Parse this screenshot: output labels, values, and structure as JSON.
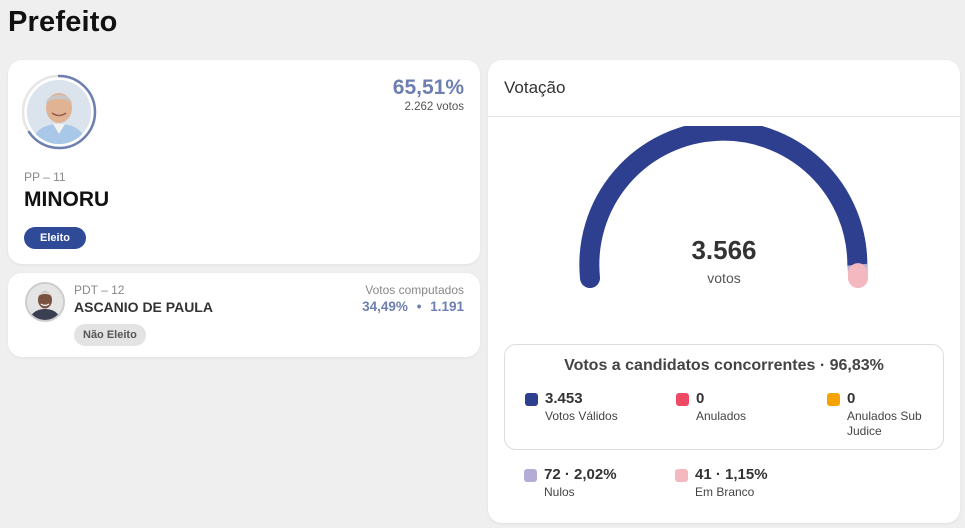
{
  "page": {
    "title": "Prefeito"
  },
  "winner": {
    "party": "PP – 11",
    "name": "MINORU",
    "percent": "65,51%",
    "votes": "2.262 votos",
    "status": "Eleito",
    "ring_fraction": 0.6551
  },
  "second": {
    "party": "PDT – 12",
    "name": "ASCANIO DE PAULA",
    "status": "Não Eleito",
    "computed_label": "Votos computados",
    "percent": "34,49%",
    "separator": "•",
    "votes": "1.191"
  },
  "votacao": {
    "header": "Votação",
    "total": "3.566",
    "total_unit": "votos",
    "gauge_segments": [
      {
        "name": "Votos Válidos",
        "value": 3453,
        "color": "#2e3f8f"
      },
      {
        "name": "Anulados",
        "value": 0,
        "color": "#ef4a63"
      },
      {
        "name": "Anulados Sub Judice",
        "value": 0,
        "color": "#f5a300"
      },
      {
        "name": "Nulos",
        "value": 72,
        "color": "#b4acd6"
      },
      {
        "name": "Em Branco",
        "value": 41,
        "color": "#f4b8c0"
      }
    ],
    "concorrentes_title": "Votos a candidatos concorrentes · 96,83%",
    "legend": [
      {
        "value": "3.453",
        "label": "Votos Válidos",
        "color": "#2e3f8f"
      },
      {
        "value": "0",
        "label": "Anulados",
        "color": "#ef4a63"
      },
      {
        "value": "0",
        "label": "Anulados Sub Judice",
        "color": "#f5a300"
      },
      {
        "value": "72 · 2,02%",
        "label": "Nulos",
        "color": "#b4acd6"
      },
      {
        "value": "41 · 1,15%",
        "label": "Em Branco",
        "color": "#f4b8c0"
      }
    ]
  }
}
